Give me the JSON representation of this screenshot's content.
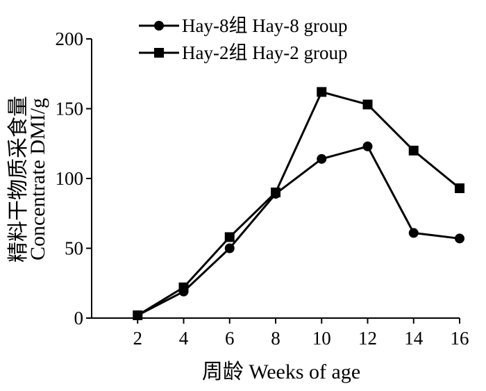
{
  "chart_data": {
    "type": "line",
    "x": [
      2,
      4,
      6,
      8,
      10,
      12,
      14,
      16
    ],
    "xlabel": "周龄 Weeks of age",
    "ylabel_line1": "精料干物质采食量",
    "ylabel_line2": "Concentrate DMI/g",
    "xticks": [
      "2",
      "4",
      "6",
      "8",
      "10",
      "12",
      "14",
      "16"
    ],
    "yticks": [
      "0",
      "50",
      "100",
      "150",
      "200"
    ],
    "ylim": [
      0,
      200
    ],
    "xlim": [
      0,
      16
    ],
    "grid": false,
    "legend_position": "top-center",
    "series": [
      {
        "name": "Hay-8组 Hay-8 group",
        "marker": "circle",
        "color": "#000000",
        "values": [
          2,
          19,
          50,
          89,
          114,
          123,
          61,
          57
        ]
      },
      {
        "name": "Hay-2组 Hay-2 group",
        "marker": "square",
        "color": "#000000",
        "values": [
          2,
          22,
          58,
          90,
          162,
          153,
          120,
          93
        ]
      }
    ]
  }
}
